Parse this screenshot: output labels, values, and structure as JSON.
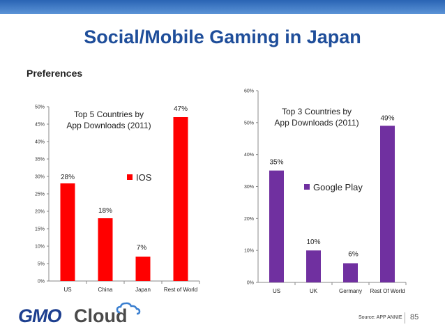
{
  "slide": {
    "title": "Social/Mobile Gaming in Japan",
    "subtitle": "Preferences",
    "source": "Source: APP ANNIE",
    "page_number": "85",
    "logo": {
      "gmo": "GMO",
      "cloud": "Cloud"
    },
    "colors": {
      "accent": "#1f4e9a",
      "band": "#2a64b4"
    }
  },
  "chart_data": [
    {
      "type": "bar",
      "title": "Top 5 Countries by App Downloads (2011)",
      "title_lines": [
        "Top 5 Countries by",
        "App Downloads (2011)"
      ],
      "categories": [
        "US",
        "China",
        "Japan",
        "Rest of World"
      ],
      "series": [
        {
          "name": "IOS",
          "values": [
            28,
            18,
            7,
            47
          ],
          "color": "#ff0000"
        }
      ],
      "data_labels": [
        "28%",
        "18%",
        "7%",
        "47%"
      ],
      "ylim": [
        0,
        50
      ],
      "yticks": [
        0,
        5,
        10,
        15,
        20,
        25,
        30,
        35,
        40,
        45,
        50
      ],
      "ytick_labels": [
        "0%",
        "5%",
        "10%",
        "15%",
        "20%",
        "25%",
        "30%",
        "35%",
        "40%",
        "45%",
        "50%"
      ],
      "grid": false,
      "legend": "inside"
    },
    {
      "type": "bar",
      "title": "Top 3 Countries by App Downloads (2011)",
      "title_lines": [
        "Top 3 Countries by",
        "App Downloads (2011)"
      ],
      "categories": [
        "US",
        "UK",
        "Germany",
        "Rest Of World"
      ],
      "series": [
        {
          "name": "Google Play",
          "values": [
            35,
            10,
            6,
            49
          ],
          "color": "#7030a0"
        }
      ],
      "data_labels": [
        "35%",
        "10%",
        "6%",
        "49%"
      ],
      "ylim": [
        0,
        60
      ],
      "yticks": [
        0,
        10,
        20,
        30,
        40,
        50,
        60
      ],
      "ytick_labels": [
        "0%",
        "10%",
        "20%",
        "30%",
        "40%",
        "50%",
        "60%"
      ],
      "grid": false,
      "legend": "inside"
    }
  ]
}
